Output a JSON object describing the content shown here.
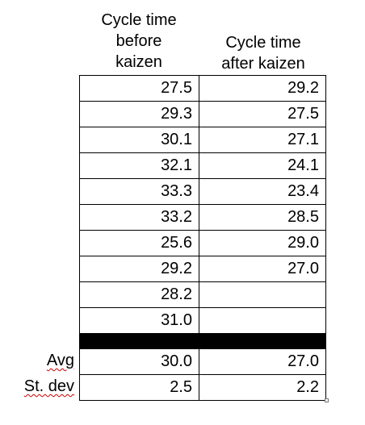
{
  "headers": {
    "before": [
      "Cycle time",
      "before",
      "kaizen"
    ],
    "after": [
      "Cycle time",
      "after kaizen"
    ]
  },
  "rows": [
    {
      "before": "27.5",
      "after": "29.2"
    },
    {
      "before": "29.3",
      "after": "27.5"
    },
    {
      "before": "30.1",
      "after": "27.1"
    },
    {
      "before": "32.1",
      "after": "24.1"
    },
    {
      "before": "33.3",
      "after": "23.4"
    },
    {
      "before": "33.2",
      "after": "28.5"
    },
    {
      "before": "25.6",
      "after": "29.0"
    },
    {
      "before": "29.2",
      "after": "27.0"
    },
    {
      "before": "28.2",
      "after": ""
    },
    {
      "before": "31.0",
      "after": ""
    }
  ],
  "summary": {
    "avg": {
      "label": "Avg",
      "before": "30.0",
      "after": "27.0"
    },
    "stdev": {
      "label": "St. dev",
      "before": "2.5",
      "after": "2.2"
    }
  }
}
